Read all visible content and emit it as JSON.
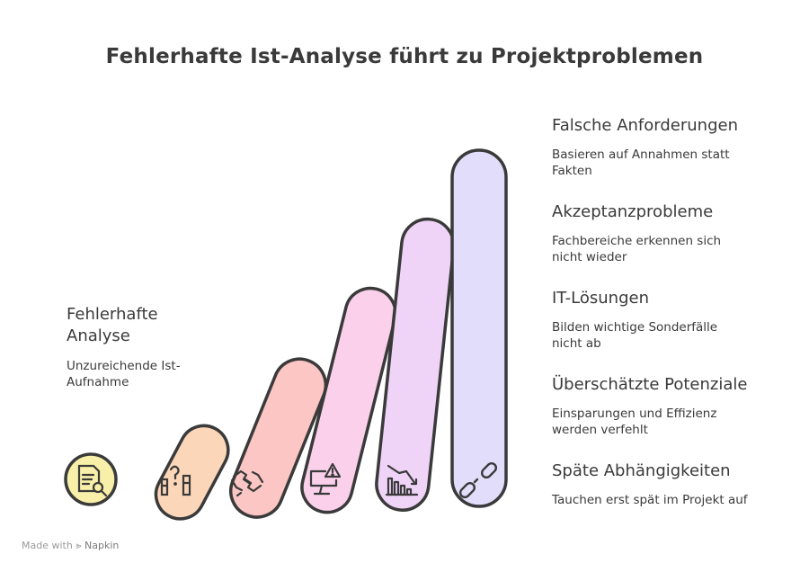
{
  "title": "Fehlerhafte Ist-Analyse führt zu Projektproblemen",
  "left": {
    "heading_line1": "Fehlerhafte",
    "heading_line2": "Analyse",
    "desc_line1": "Unzureichende Ist-",
    "desc_line2": "Aufnahme"
  },
  "items": [
    {
      "heading": "Falsche Anforderungen",
      "desc_line1": "Basieren auf Annahmen statt",
      "desc_line2": "Fakten"
    },
    {
      "heading": "Akzeptanzprobleme",
      "desc_line1": "Fachbereiche erkennen sich",
      "desc_line2": "nicht wieder"
    },
    {
      "heading": "IT-Lösungen",
      "desc_line1": "Bilden wichtige Sonderfälle",
      "desc_line2": "nicht ab"
    },
    {
      "heading": "Überschätzte Potenziale",
      "desc_line1": "Einsparungen und Effizienz",
      "desc_line2": "werden verfehlt"
    },
    {
      "heading": "Späte Abhängigkeiten",
      "desc_line1": "Tauchen erst spät im Projekt auf",
      "desc_line2": ""
    }
  ],
  "icons": [
    "document-search-icon",
    "question-columns-icon",
    "puzzle-hands-icon",
    "monitor-warning-icon",
    "declining-chart-icon",
    "broken-link-icon"
  ],
  "colors": {
    "circle": "#f8f0a8",
    "bar1": "#fbd6b8",
    "bar2": "#fbc6c4",
    "bar3": "#fad0ea",
    "bar4": "#efd4f7",
    "bar5": "#e2ddfb",
    "outline": "#3a3a3a"
  },
  "footer": {
    "made_with": "Made with",
    "brand": "Napkin"
  }
}
